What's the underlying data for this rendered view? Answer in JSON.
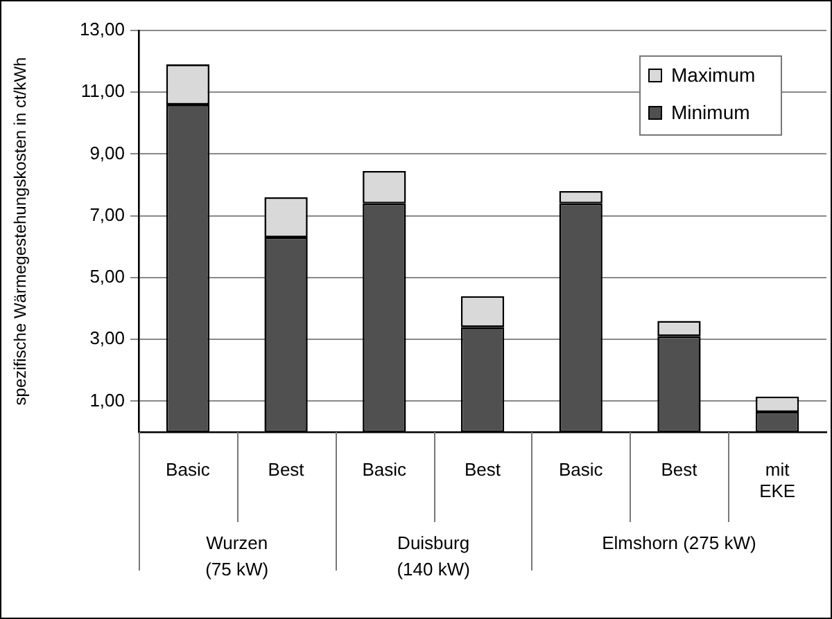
{
  "chart_data": {
    "type": "bar",
    "stacked": true,
    "ylabel": "spezifische Wärmegestehungskosten in ct/kWh",
    "categories": [
      "Basic",
      "Best",
      "Basic",
      "Best",
      "Basic",
      "Best",
      "mit EKE"
    ],
    "series": [
      {
        "name": "Minimum",
        "color": "#505050",
        "values": [
          10.6,
          6.3,
          7.4,
          3.4,
          7.4,
          3.1,
          0.65
        ]
      },
      {
        "name": "Maximum",
        "color": "#d9d9d9",
        "values": [
          1.3,
          1.3,
          1.05,
          1.0,
          0.4,
          0.5,
          0.5
        ]
      }
    ],
    "ylim": [
      0,
      13
    ],
    "yticks": [
      {
        "value": 1,
        "label": "1,00"
      },
      {
        "value": 3,
        "label": "3,00"
      },
      {
        "value": 5,
        "label": "5,00"
      },
      {
        "value": 7,
        "label": "7,00"
      },
      {
        "value": 9,
        "label": "9,00"
      },
      {
        "value": 11,
        "label": "11,00"
      },
      {
        "value": 13,
        "label": "13,00"
      }
    ],
    "grid": "y",
    "legend": "top right",
    "annotations": [
      "Wurzen\n(75 kW)",
      "Duisburg\n(140 kW)",
      "Elmshorn (275 kW)"
    ]
  }
}
